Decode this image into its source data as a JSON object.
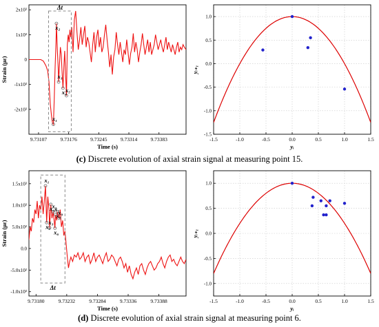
{
  "captions": {
    "c": {
      "letter": "(c)",
      "text": "Discrete evolution of axial strain signal at measuring point 15."
    },
    "d": {
      "letter": "(d)",
      "text": "Discrete evolution of axial strain signal at measuring point 6."
    }
  },
  "colors": {
    "signal": "#ee1111",
    "parabola": "#dd0000",
    "points": "#2222cc",
    "box": "#888888"
  },
  "chart_data": [
    {
      "id": "c-left",
      "type": "line",
      "xlabel": "Time (s)",
      "ylabel": "Strain (με)",
      "xlim": [
        9.73085,
        9.73445
      ],
      "ylim": [
        -3000,
        2200
      ],
      "xticks": [
        9.73107,
        9.73176,
        9.73245,
        9.73314,
        9.73383
      ],
      "xtick_labels": [
        "9.73107",
        "9.73176",
        "9.73245",
        "9.73314",
        "9.73383"
      ],
      "yticks": [
        -2000,
        -1000,
        0,
        1000,
        2000
      ],
      "ytick_labels": [
        "-2x10³",
        "-1x10³",
        "0",
        "1x10³",
        "2x10³"
      ],
      "box": {
        "x": [
          9.7313,
          9.73182
        ],
        "y": [
          -2900,
          1950
        ],
        "label": "Δt"
      },
      "markers": [
        {
          "label": "x₁",
          "x": 9.73141,
          "y": -2600
        },
        {
          "label": "x₂",
          "x": 9.73148,
          "y": 1450
        },
        {
          "label": "x₃",
          "x": 9.73153,
          "y": -900
        },
        {
          "label": "x₄",
          "x": 9.73163,
          "y": -1150
        },
        {
          "label": "x₅",
          "x": 9.73171,
          "y": -1450
        }
      ],
      "x": [
        9.73085,
        9.731,
        9.73112,
        9.73118,
        9.73124,
        9.73128,
        9.73131,
        9.73134,
        9.73137,
        9.73139,
        9.73141,
        9.73143,
        9.73145,
        9.73147,
        9.73148,
        9.7315,
        9.73152,
        9.73153,
        9.73155,
        9.73157,
        9.73159,
        9.73161,
        9.73163,
        9.73165,
        9.73167,
        9.73169,
        9.73171,
        9.73173,
        9.73175,
        9.73177,
        9.73179,
        9.73181,
        9.73183,
        9.73186,
        9.73189,
        9.73192,
        9.73195,
        9.73198,
        9.73201,
        9.73204,
        9.73207,
        9.7321,
        9.73213,
        9.73216,
        9.73219,
        9.73222,
        9.73225,
        9.73228,
        9.73231,
        9.73234,
        9.73237,
        9.7324,
        9.73243,
        9.73246,
        9.73249,
        9.73252,
        9.73255,
        9.73258,
        9.73261,
        9.73264,
        9.73267,
        9.7327,
        9.73273,
        9.73276,
        9.73279,
        9.73282,
        9.73285,
        9.73288,
        9.73291,
        9.73294,
        9.73297,
        9.733,
        9.73303,
        9.73306,
        9.73309,
        9.73312,
        9.73315,
        9.73318,
        9.73321,
        9.73324,
        9.73327,
        9.7333,
        9.73333,
        9.73336,
        9.73339,
        9.73342,
        9.73345,
        9.73348,
        9.73351,
        9.73354,
        9.73357,
        9.7336,
        9.73363,
        9.73366,
        9.73369,
        9.73372,
        9.73375,
        9.73378,
        9.73381,
        9.73384,
        9.73387,
        9.7339,
        9.73393,
        9.73396,
        9.73399,
        9.73402,
        9.73405,
        9.73408,
        9.73411,
        9.73414,
        9.73417,
        9.7342,
        9.73423,
        9.73426,
        9.73429,
        9.73432,
        9.73435,
        9.73438,
        9.73441,
        9.73445
      ],
      "y": [
        0,
        0,
        0,
        -60,
        -250,
        -450,
        -900,
        -1800,
        -2300,
        -2550,
        -2600,
        -1600,
        -300,
        700,
        1450,
        400,
        -300,
        -900,
        -200,
        500,
        200,
        -500,
        -1150,
        -300,
        350,
        -600,
        -1450,
        600,
        1000,
        700,
        1200,
        900,
        1300,
        300,
        1600,
        1950,
        1100,
        400,
        800,
        1300,
        600,
        1000,
        1350,
        500,
        900,
        700,
        300,
        -100,
        600,
        1100,
        300,
        900,
        1200,
        500,
        900,
        300,
        500,
        1000,
        1400,
        800,
        300,
        -300,
        200,
        -600,
        100,
        400,
        1100,
        600,
        200,
        700,
        300,
        -100,
        400,
        200,
        800,
        300,
        -200,
        250,
        500,
        1050,
        300,
        700,
        400,
        -100,
        300,
        600,
        1050,
        600,
        200,
        500,
        800,
        300,
        700,
        200,
        400,
        600,
        1000,
        700,
        400,
        600,
        800,
        500,
        300,
        600,
        900,
        400,
        700,
        500,
        300,
        600,
        400,
        200,
        500,
        700,
        300,
        500,
        400,
        600,
        500,
        400
      ]
    },
    {
      "id": "c-right",
      "type": "scatter",
      "xlabel": "yᵢ",
      "ylabel": "yᵢ₊₁",
      "xlim": [
        -1.5,
        1.5
      ],
      "ylim": [
        -1.5,
        1.25
      ],
      "xticks": [
        -1.5,
        -1.0,
        -0.5,
        0.0,
        0.5,
        1.0,
        1.5
      ],
      "xtick_labels": [
        "-1.5",
        "-1.0",
        "-0.5",
        "0.0",
        "0.5",
        "1.0",
        "1.5"
      ],
      "yticks": [
        -1.5,
        -1.0,
        -0.5,
        0.0,
        0.5,
        1.0
      ],
      "ytick_labels": [
        "-1.5",
        "-1.0",
        "-0.5",
        "0.0",
        "0.5",
        "1.0"
      ],
      "grid": true,
      "curve": {
        "type": "parabola",
        "a": 1.0,
        "c": 1.0
      },
      "points": [
        [
          -0.56,
          0.29
        ],
        [
          0.0,
          1.0
        ],
        [
          0.3,
          0.34
        ],
        [
          0.35,
          0.55
        ],
        [
          1.0,
          -0.54
        ]
      ]
    },
    {
      "id": "d-left",
      "type": "line",
      "xlabel": "Time (s)",
      "ylabel": "Strain (με)",
      "xlim": [
        9.73168,
        9.73434
      ],
      "ylim": [
        -1100,
        1800
      ],
      "xticks": [
        9.7318,
        9.73232,
        9.73284,
        9.73336,
        9.73388
      ],
      "xtick_labels": [
        "9.73180",
        "9.73232",
        "9.73284",
        "9.73336",
        "9.73388"
      ],
      "yticks": [
        -1000,
        -500,
        0,
        500,
        1000,
        1500
      ],
      "ytick_labels": [
        "-1.0x10³",
        "-5.0x10²",
        "0.0",
        "5.0x10²",
        "1.0x10³",
        "1.5x10³"
      ],
      "box": {
        "x": [
          9.73188,
          9.73229
        ],
        "y": [
          -800,
          1700
        ],
        "label": "Δt"
      },
      "markers": [
        {
          "label": "x₁",
          "x": 9.73196,
          "y": 1450
        },
        {
          "label": "x₂",
          "x": 9.73198,
          "y": 600
        },
        {
          "label": "x₃",
          "x": 9.73203,
          "y": 480
        },
        {
          "label": "x₄",
          "x": 9.73205,
          "y": 1020
        },
        {
          "label": "x₅",
          "x": 9.73209,
          "y": 850
        },
        {
          "label": "x₆",
          "x": 9.73212,
          "y": 470
        },
        {
          "label": "x₇",
          "x": 9.73213,
          "y": 780
        },
        {
          "label": "x₈",
          "x": 9.73216,
          "y": 850
        },
        {
          "label": "x₉",
          "x": 9.73219,
          "y": 700
        }
      ],
      "x": [
        9.73168,
        9.7317,
        9.73172,
        9.73174,
        9.73176,
        9.73178,
        9.7318,
        9.73182,
        9.73184,
        9.73186,
        9.73188,
        9.7319,
        9.73192,
        9.73194,
        9.73196,
        9.73198,
        9.732,
        9.73202,
        9.73203,
        9.73205,
        9.73207,
        9.73209,
        9.73211,
        9.73212,
        9.73213,
        9.73215,
        9.73216,
        9.73218,
        9.73219,
        9.73221,
        9.73223,
        9.73225,
        9.73227,
        9.73229,
        9.73231,
        9.73233,
        9.73235,
        9.73237,
        9.73239,
        9.73242,
        9.73245,
        9.73248,
        9.73251,
        9.73254,
        9.73257,
        9.7326,
        9.73263,
        9.73266,
        9.73269,
        9.73272,
        9.73275,
        9.73278,
        9.73281,
        9.73284,
        9.73287,
        9.7329,
        9.73293,
        9.73296,
        9.73299,
        9.73302,
        9.73305,
        9.73308,
        9.73311,
        9.73314,
        9.73317,
        9.7332,
        9.73323,
        9.73326,
        9.73329,
        9.73332,
        9.73335,
        9.73338,
        9.73341,
        9.73344,
        9.73347,
        9.7335,
        9.73353,
        9.73356,
        9.73359,
        9.73362,
        9.73365,
        9.73368,
        9.73371,
        9.73374,
        9.73377,
        9.7338,
        9.73383,
        9.73386,
        9.73389,
        9.73392,
        9.73395,
        9.73398,
        9.73401,
        9.73404,
        9.73407,
        9.7341,
        9.73413,
        9.73416,
        9.73419,
        9.73422,
        9.73425,
        9.73428,
        9.73431,
        9.73434
      ],
      "y": [
        200,
        500,
        400,
        700,
        600,
        900,
        800,
        1100,
        700,
        1000,
        900,
        1200,
        800,
        1100,
        1450,
        600,
        1200,
        900,
        480,
        1020,
        700,
        850,
        600,
        470,
        780,
        650,
        850,
        750,
        700,
        900,
        500,
        650,
        300,
        400,
        100,
        -200,
        -450,
        -300,
        -200,
        -300,
        -150,
        -200,
        -100,
        -250,
        -200,
        -100,
        -300,
        -200,
        -150,
        -350,
        -250,
        -100,
        -300,
        -200,
        -150,
        -250,
        -350,
        -200,
        -100,
        -300,
        -250,
        -150,
        -200,
        -300,
        -400,
        -250,
        -200,
        -300,
        -450,
        -350,
        -550,
        -400,
        -600,
        -700,
        -550,
        -450,
        -600,
        -400,
        -350,
        -500,
        -600,
        -450,
        -350,
        -300,
        -400,
        -500,
        -450,
        -350,
        -300,
        -200,
        -350,
        -450,
        -300,
        -200,
        -150,
        -300,
        -250,
        -350,
        -400,
        -300,
        -200,
        -300,
        -350,
        -250
      ]
    },
    {
      "id": "d-right",
      "type": "scatter",
      "xlabel": "yᵢ",
      "ylabel": "yᵢ₊₁",
      "xlim": [
        -1.5,
        1.5
      ],
      "ylim": [
        -1.25,
        1.25
      ],
      "xticks": [
        -1.5,
        -1.0,
        -0.5,
        0.0,
        0.5,
        1.0,
        1.5
      ],
      "xtick_labels": [
        "-1.5",
        "-1.0",
        "-0.5",
        "0.0",
        "0.5",
        "1.0",
        "1.5"
      ],
      "yticks": [
        -1.0,
        -0.5,
        0.0,
        0.5,
        1.0
      ],
      "ytick_labels": [
        "-1.0",
        "-0.5",
        "0.0",
        "0.5",
        "1.0"
      ],
      "grid": true,
      "curve": {
        "type": "parabola",
        "a": 0.8,
        "c": 1.0
      },
      "points": [
        [
          0.0,
          1.0
        ],
        [
          0.38,
          0.55
        ],
        [
          0.4,
          0.72
        ],
        [
          0.55,
          0.65
        ],
        [
          0.6,
          0.37
        ],
        [
          0.65,
          0.37
        ],
        [
          0.65,
          0.55
        ],
        [
          0.72,
          0.65
        ],
        [
          1.0,
          0.6
        ]
      ]
    }
  ]
}
